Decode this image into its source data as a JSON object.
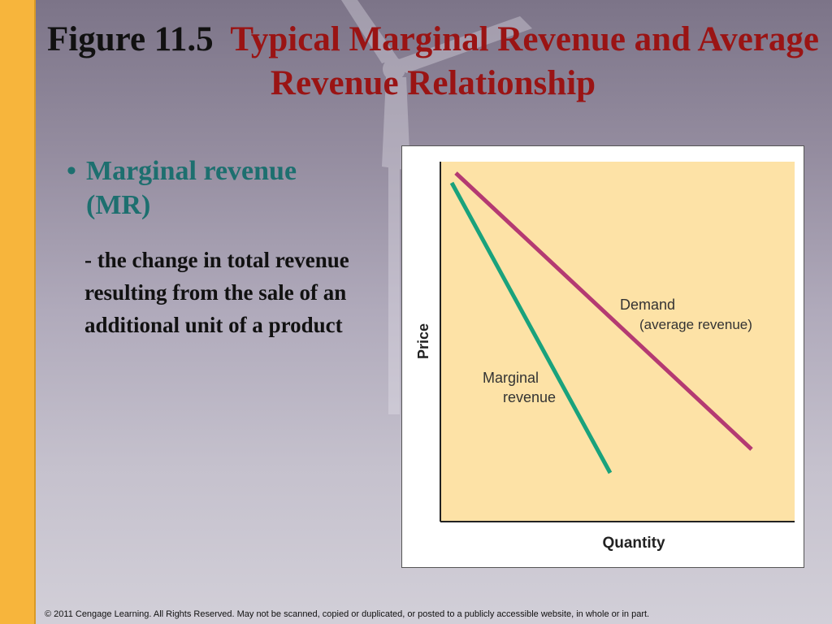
{
  "title": {
    "figure_number": "Figure 11.5",
    "heading": "Typical Marginal Revenue and Average Revenue Relationship"
  },
  "bullet": {
    "marker": "•",
    "term": "Marginal revenue (MR)",
    "definition": "- the change in total revenue resulting from the sale of an additional unit of a product"
  },
  "diagram": {
    "y_axis_label": "Price",
    "x_axis_label": "Quantity",
    "demand_label_line1": "Demand",
    "demand_label_line2": "(average revenue)",
    "mr_label_line1": "Marginal",
    "mr_label_line2": "revenue",
    "plot_background": "#fde2a6",
    "demand_color": "#b43a72",
    "mr_color": "#1aa27c"
  },
  "footer": {
    "copyright": "© 2011 Cengage Learning. All Rights Reserved. May not be scanned, copied or duplicated, or posted to a publicly accessible website, in whole or in part."
  }
}
